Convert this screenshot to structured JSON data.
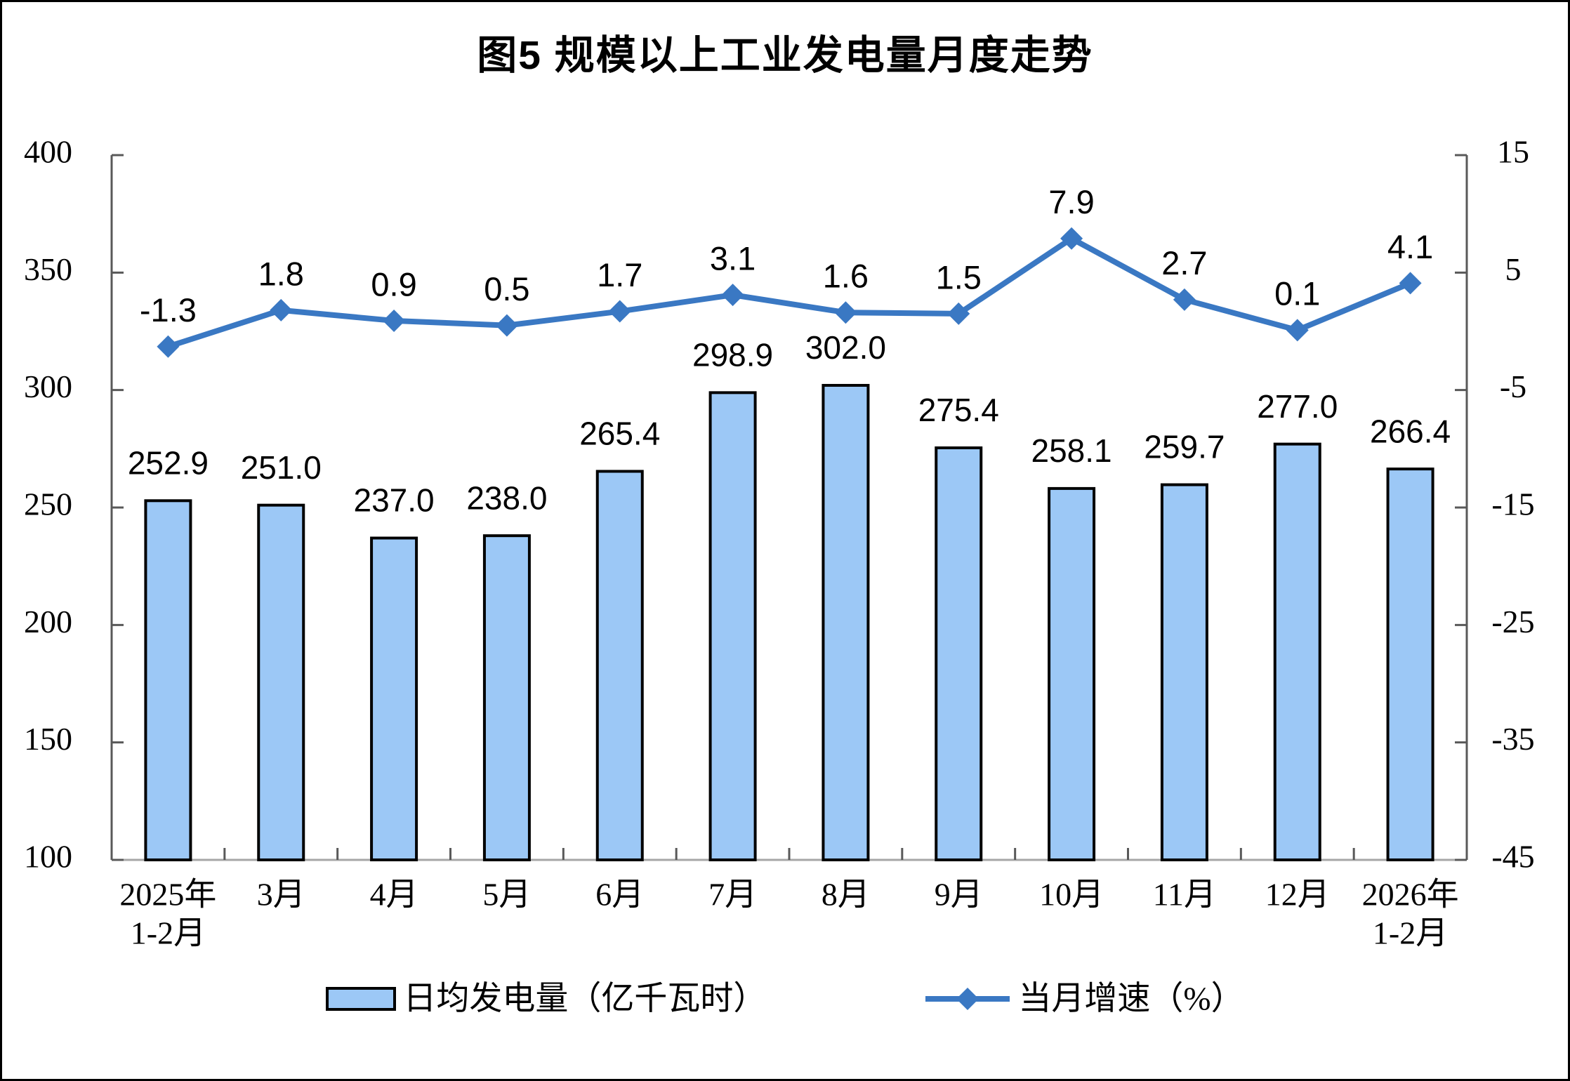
{
  "title": "图5 规模以上工业发电量月度走势",
  "legend": {
    "bar_label": "日均发电量（亿千瓦时）",
    "line_label": "当月增速（%）"
  },
  "colors": {
    "bar_fill": "#9CC8F6",
    "bar_border": "#000000",
    "line": "#3A78C3",
    "axis_line": "#595959",
    "baseline": "#A6A6A6",
    "label_text": "#000000"
  },
  "chart_data": {
    "type": "bar+line combo",
    "title": "图5 规模以上工业发电量月度走势",
    "categories": [
      "2025年\n1-2月",
      "3月",
      "4月",
      "5月",
      "6月",
      "7月",
      "8月",
      "9月",
      "10月",
      "11月",
      "12月",
      "2026年\n1-2月"
    ],
    "series": [
      {
        "name": "日均发电量（亿千瓦时）",
        "type": "bar",
        "axis": "left",
        "values": [
          252.9,
          251.0,
          237.0,
          238.0,
          265.4,
          298.9,
          302.0,
          275.4,
          258.1,
          259.7,
          277.0,
          266.4
        ]
      },
      {
        "name": "当月增速（%）",
        "type": "line",
        "axis": "right",
        "values": [
          -1.3,
          1.8,
          0.9,
          0.5,
          1.7,
          3.1,
          1.6,
          1.5,
          7.9,
          2.7,
          0.1,
          4.1
        ]
      }
    ],
    "left_axis": {
      "min": 100,
      "max": 400,
      "step": 50,
      "ticks": [
        400,
        350,
        300,
        250,
        200,
        150,
        100
      ]
    },
    "right_axis": {
      "min": -45,
      "max": 15,
      "step": 10,
      "ticks": [
        15,
        5,
        -5,
        -15,
        -25,
        -35,
        -45
      ]
    },
    "grid": false,
    "legend_position": "bottom",
    "data_labels": "all points, one decimal"
  }
}
